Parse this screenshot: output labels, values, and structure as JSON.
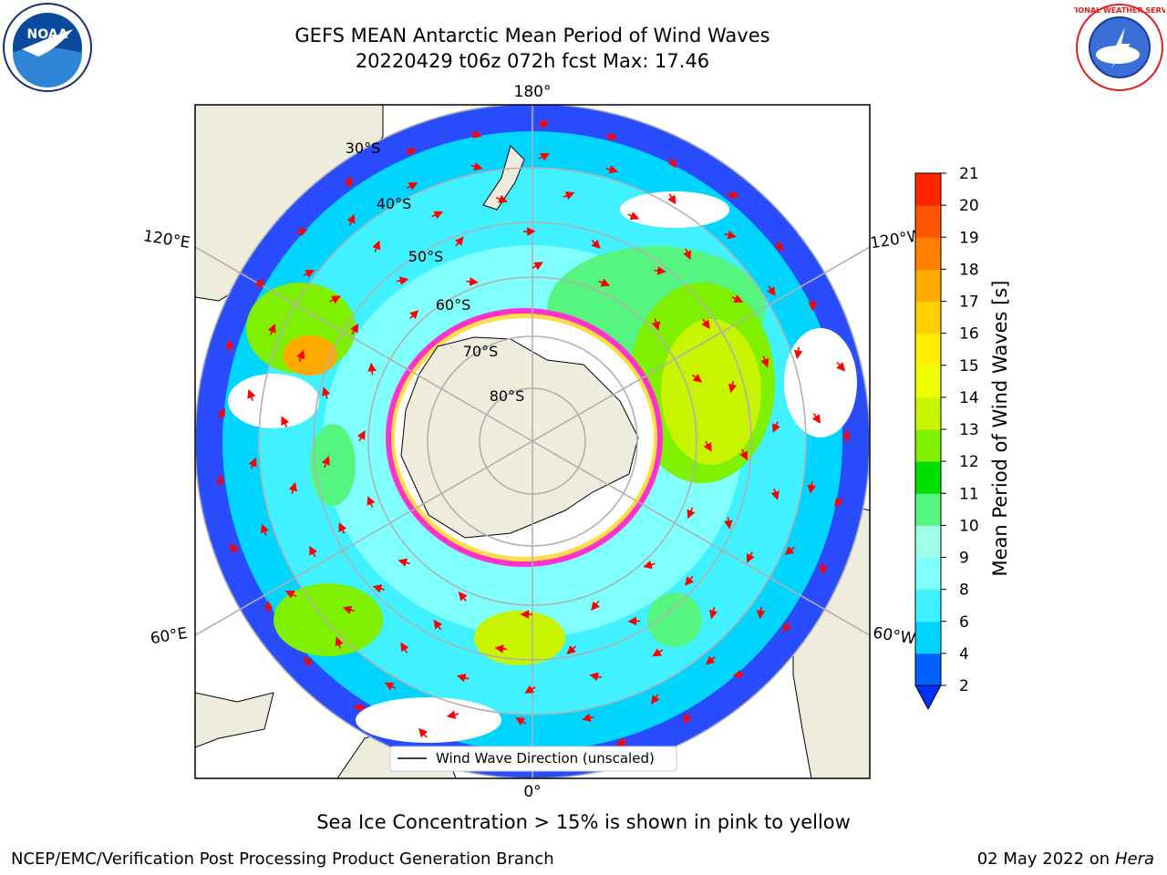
{
  "title_line1": "GEFS MEAN Antarctic Mean Period of Wind Waves",
  "title_line2": "20220429 t06z 072h fcst   Max: 17.46",
  "logos": {
    "left": "NOAA",
    "right": "National Weather Service"
  },
  "map": {
    "projection": "south-polar-stereographic",
    "lon_labels": [
      "180°",
      "120°E",
      "120°W",
      "60°E",
      "60°W",
      "0°"
    ],
    "lat_labels": [
      "30°S",
      "40°S",
      "50°S",
      "60°S",
      "70°S",
      "80°S"
    ],
    "legend_label": "Wind Wave Direction (unscaled)",
    "arrow_color": "#ff0000",
    "land_color": "#eeecdc",
    "sea_ice_colors": [
      "#ff33cc",
      "#ffdd44"
    ]
  },
  "colorbar": {
    "label": "Mean Period of Wind Waves [s]",
    "ticks": [
      "2",
      "4",
      "6",
      "8",
      "9",
      "10",
      "11",
      "12",
      "13",
      "14",
      "15",
      "16",
      "17",
      "18",
      "19",
      "20",
      "21"
    ],
    "colors": [
      "#0060ff",
      "#00d5ff",
      "#40f2ff",
      "#80ffff",
      "#a0ffe8",
      "#55f580",
      "#00e000",
      "#7ef000",
      "#c8f400",
      "#eeff00",
      "#ffee00",
      "#ffd000",
      "#ffaa00",
      "#ff8000",
      "#ff5500",
      "#ff2500",
      "#ff0000"
    ],
    "under_color": "#0030ff",
    "extend": "min"
  },
  "chart_data": {
    "type": "heatmap",
    "title": "GEFS MEAN Antarctic Mean Period of Wind Waves",
    "subtitle": "20220429 t06z 072h fcst   Max: 17.46",
    "variable_label": "Mean Period of Wind Waves [s]",
    "max": 17.46,
    "color_levels": [
      2,
      4,
      6,
      8,
      9,
      10,
      11,
      12,
      13,
      14,
      15,
      16,
      17,
      18,
      19,
      20,
      21
    ]
  },
  "footer": {
    "subtitle": "Sea Ice Concentration > 15% is shown in pink to yellow",
    "credit": "NCEP/EMC/Verification Post Processing Product Generation Branch",
    "date": "02 May 2022 on",
    "machine": "Hera"
  }
}
